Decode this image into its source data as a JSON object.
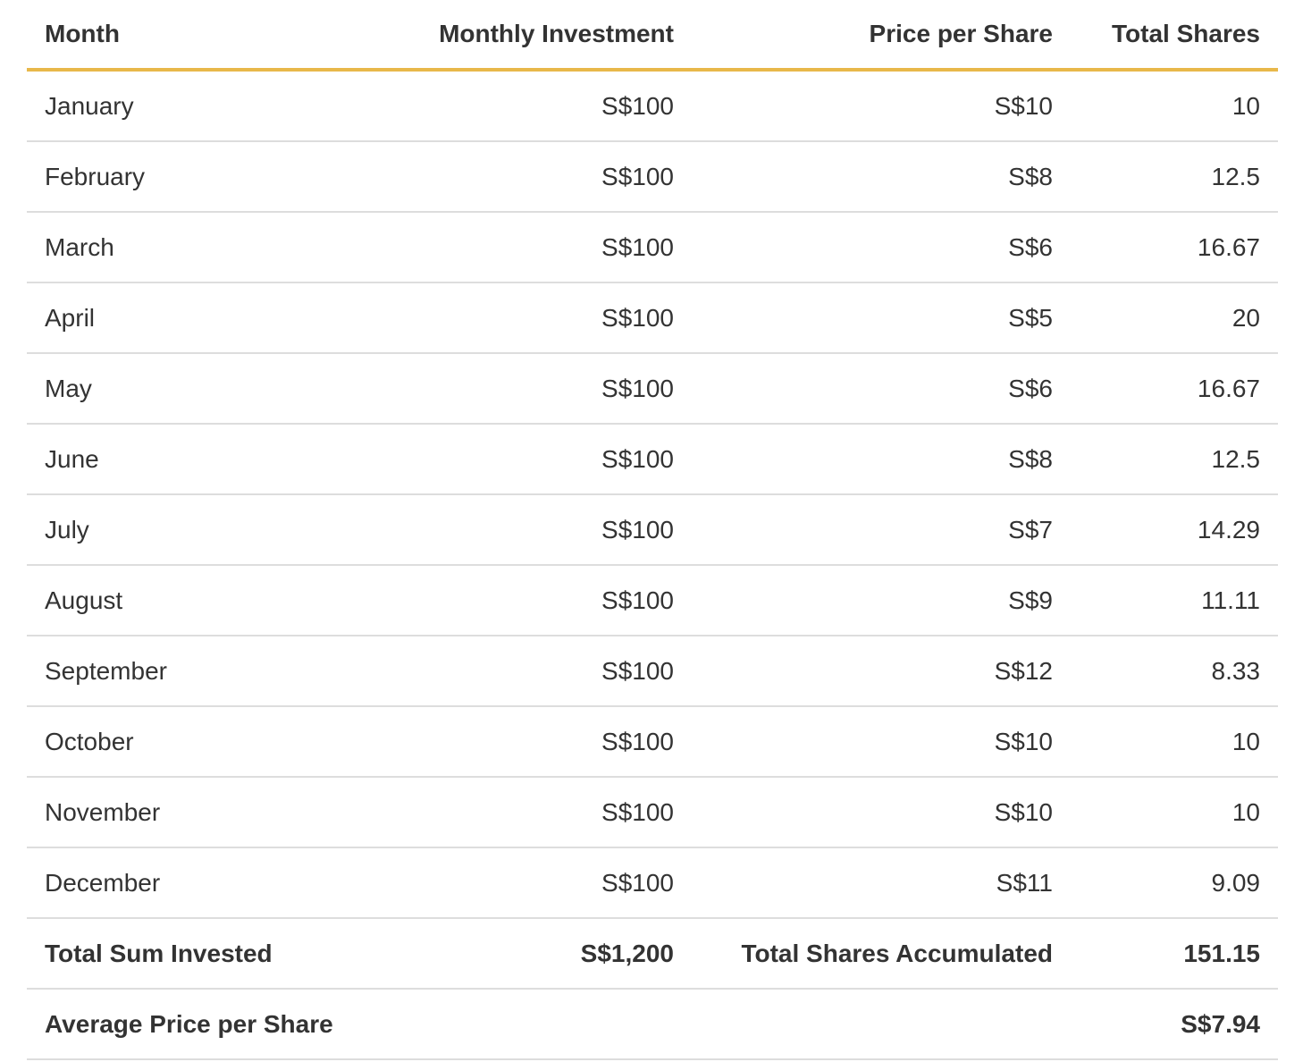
{
  "table": {
    "headers": {
      "month": "Month",
      "investment": "Monthly Investment",
      "price": "Price per Share",
      "shares": "Total Shares"
    },
    "rows": [
      {
        "month": "January",
        "investment": "S$100",
        "price": "S$10",
        "shares": "10"
      },
      {
        "month": "February",
        "investment": "S$100",
        "price": "S$8",
        "shares": "12.5"
      },
      {
        "month": "March",
        "investment": "S$100",
        "price": "S$6",
        "shares": "16.67"
      },
      {
        "month": "April",
        "investment": "S$100",
        "price": "S$5",
        "shares": "20"
      },
      {
        "month": "May",
        "investment": "S$100",
        "price": "S$6",
        "shares": "16.67"
      },
      {
        "month": "June",
        "investment": "S$100",
        "price": "S$8",
        "shares": "12.5"
      },
      {
        "month": "July",
        "investment": "S$100",
        "price": "S$7",
        "shares": "14.29"
      },
      {
        "month": "August",
        "investment": "S$100",
        "price": "S$9",
        "shares": "11.11"
      },
      {
        "month": "September",
        "investment": "S$100",
        "price": "S$12",
        "shares": "8.33"
      },
      {
        "month": "October",
        "investment": "S$100",
        "price": "S$10",
        "shares": "10"
      },
      {
        "month": "November",
        "investment": "S$100",
        "price": "S$10",
        "shares": "10"
      },
      {
        "month": "December",
        "investment": "S$100",
        "price": "S$11",
        "shares": "9.09"
      }
    ],
    "totals": {
      "invested_label": "Total Sum Invested",
      "invested_value": "S$1,200",
      "shares_label": "Total Shares Accumulated",
      "shares_value": "151.15"
    },
    "average": {
      "label": "Average Price per Share",
      "value": "S$7.94"
    }
  },
  "colors": {
    "header_rule": "#e8b84a",
    "row_rule": "#dddddd",
    "text": "#333333"
  }
}
